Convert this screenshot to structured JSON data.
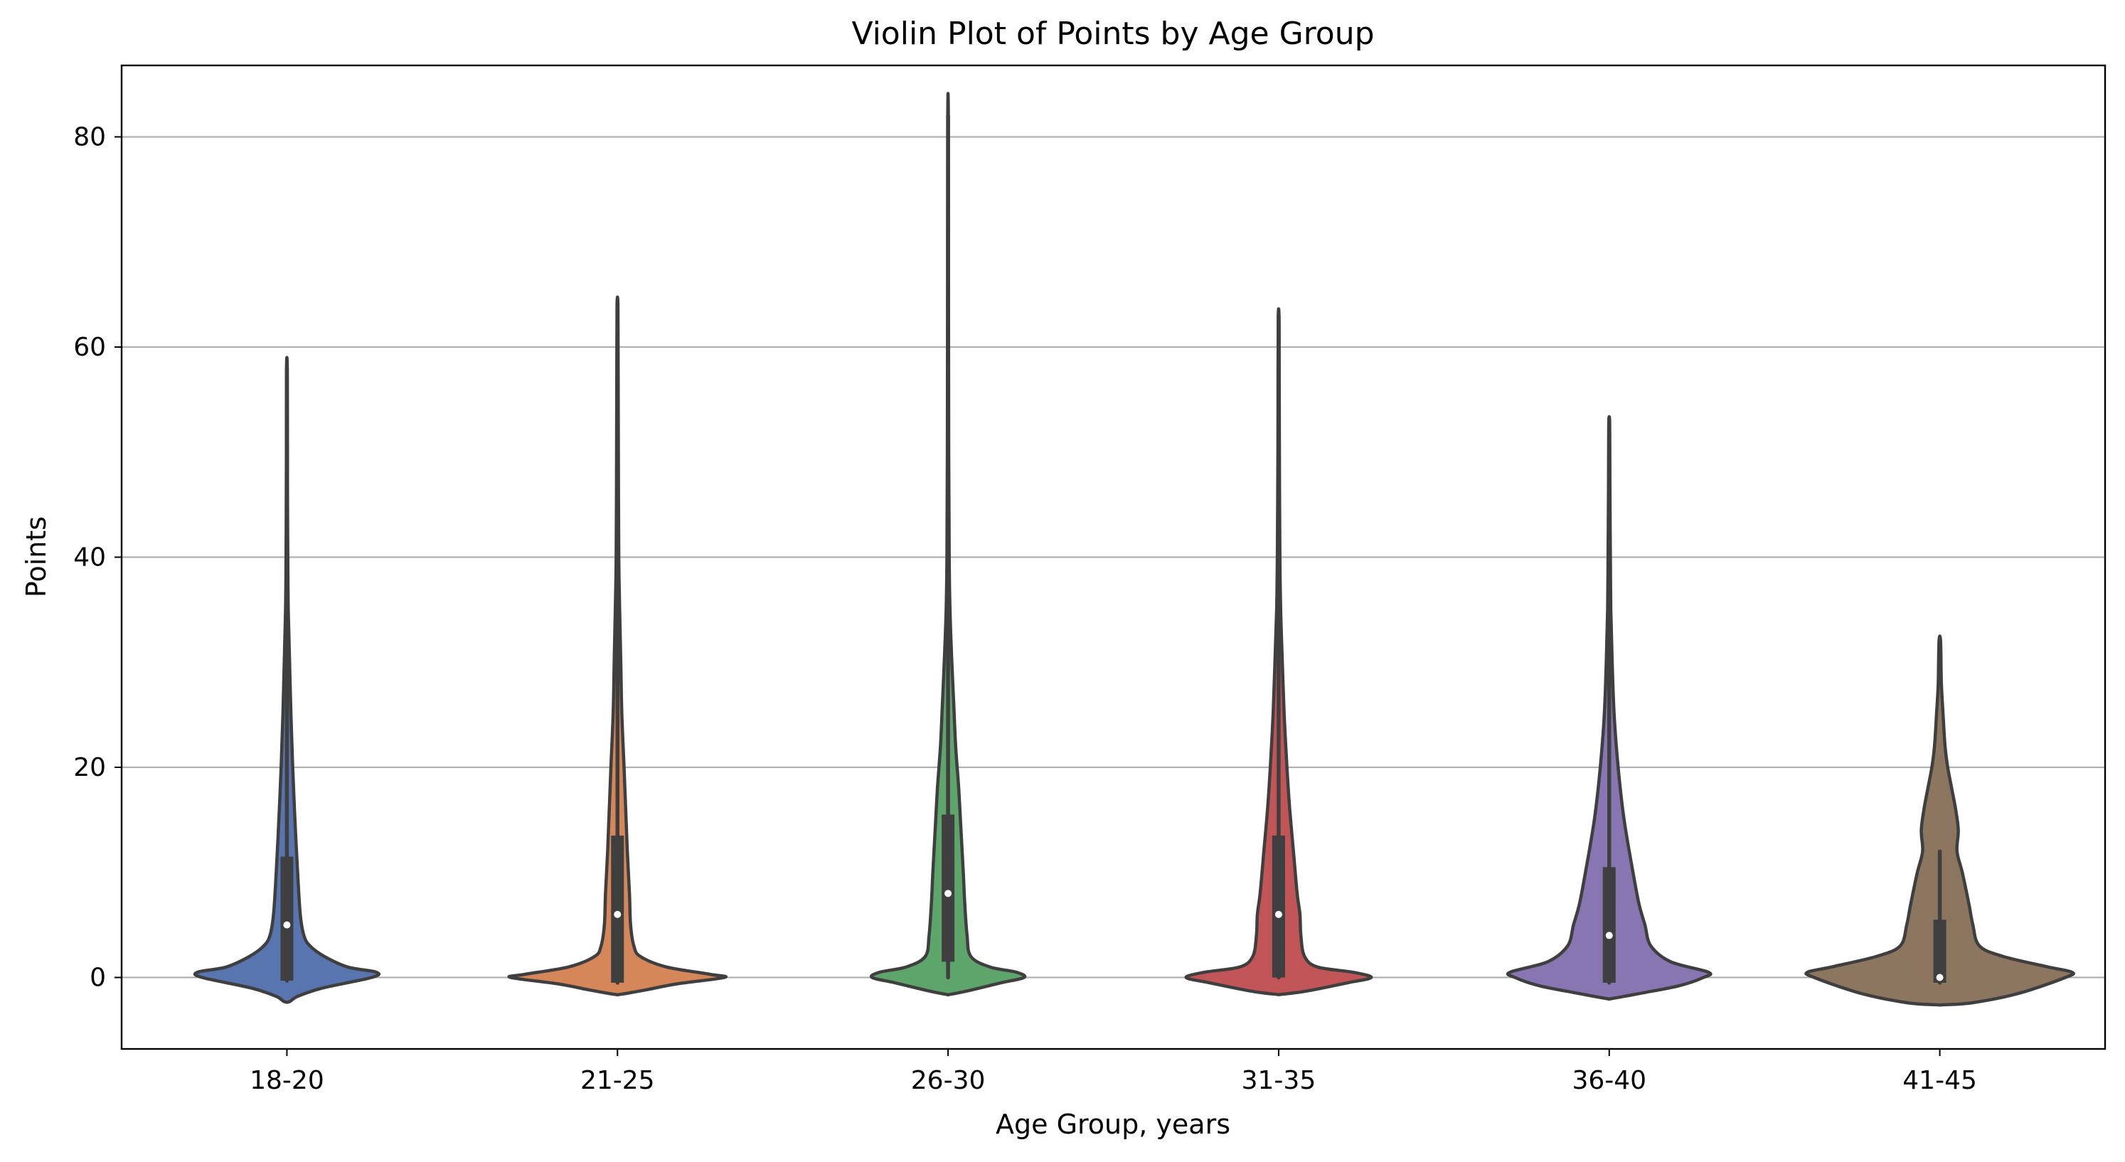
{
  "chart_data": {
    "type": "violin",
    "title": "Violin Plot of Points by Age Group",
    "xlabel": "Age Group, years",
    "ylabel": "Points",
    "ylim": [
      -6.8,
      86.8
    ],
    "yticks": [
      0,
      20,
      40,
      60,
      80
    ],
    "grid": "y",
    "outline_color": "#3f3f3f",
    "box_color": "#3f3f3f",
    "median_color": "#ffffff",
    "grid_color": "#b0b0b0",
    "categories": [
      "18-20",
      "21-25",
      "26-30",
      "31-35",
      "36-40",
      "41-45"
    ],
    "colors": [
      "#5875b0",
      "#d68759",
      "#5ea56c",
      "#c25557",
      "#8876b3",
      "#8d7660"
    ],
    "max_half_width": [
      0.27,
      0.33,
      0.23,
      0.28,
      0.3,
      0.4
    ],
    "violins": [
      {
        "category": "18-20",
        "profile": [
          [
            -2.3,
            0.03
          ],
          [
            -1.8,
            0.12
          ],
          [
            -1,
            0.4
          ],
          [
            0,
            0.95
          ],
          [
            0.5,
            1
          ],
          [
            1,
            0.68
          ],
          [
            2,
            0.42
          ],
          [
            3,
            0.26
          ],
          [
            4,
            0.19
          ],
          [
            6,
            0.15
          ],
          [
            10,
            0.12
          ],
          [
            15,
            0.09
          ],
          [
            20,
            0.065
          ],
          [
            25,
            0.045
          ],
          [
            30,
            0.03
          ],
          [
            35,
            0.015
          ],
          [
            40,
            0.01
          ],
          [
            45,
            0.007
          ],
          [
            50,
            0.006
          ],
          [
            58,
            0.004
          ]
        ],
        "q1": -0.3,
        "q3": 11.5,
        "median": 5,
        "whisker_low": -0.3,
        "whisker_high": 58
      },
      {
        "category": "21-25",
        "profile": [
          [
            -1.6,
            0.03
          ],
          [
            -1.2,
            0.25
          ],
          [
            -0.6,
            0.55
          ],
          [
            0,
            0.98
          ],
          [
            0.3,
            0.85
          ],
          [
            1,
            0.45
          ],
          [
            2,
            0.21
          ],
          [
            3,
            0.15
          ],
          [
            5,
            0.12
          ],
          [
            8,
            0.11
          ],
          [
            12,
            0.09
          ],
          [
            16,
            0.075
          ],
          [
            20,
            0.06
          ],
          [
            25,
            0.04
          ],
          [
            30,
            0.03
          ],
          [
            35,
            0.02
          ],
          [
            40,
            0.012
          ],
          [
            50,
            0.008
          ],
          [
            58,
            0.006
          ],
          [
            64,
            0.004
          ]
        ],
        "q1": -0.5,
        "q3": 13.5,
        "median": 6,
        "whisker_low": -0.5,
        "whisker_high": 64
      },
      {
        "category": "26-30",
        "profile": [
          [
            -1.6,
            0.03
          ],
          [
            -1.2,
            0.3
          ],
          [
            -0.5,
            0.7
          ],
          [
            0,
            1
          ],
          [
            0.5,
            0.9
          ],
          [
            1,
            0.55
          ],
          [
            2,
            0.3
          ],
          [
            4,
            0.25
          ],
          [
            7,
            0.22
          ],
          [
            10,
            0.2
          ],
          [
            14,
            0.17
          ],
          [
            18,
            0.14
          ],
          [
            22,
            0.1
          ],
          [
            26,
            0.075
          ],
          [
            30,
            0.05
          ],
          [
            35,
            0.025
          ],
          [
            40,
            0.015
          ],
          [
            50,
            0.009
          ],
          [
            65,
            0.006
          ],
          [
            82,
            0.004
          ]
        ],
        "q1": 1.5,
        "q3": 15.5,
        "median": 8,
        "whisker_low": 0,
        "whisker_high": 82
      },
      {
        "category": "31-35",
        "profile": [
          [
            -1.6,
            0.03
          ],
          [
            -1.3,
            0.3
          ],
          [
            -0.5,
            0.75
          ],
          [
            0,
            1
          ],
          [
            0.5,
            0.8
          ],
          [
            1,
            0.42
          ],
          [
            2,
            0.28
          ],
          [
            4,
            0.24
          ],
          [
            6,
            0.23
          ],
          [
            8,
            0.2
          ],
          [
            12,
            0.16
          ],
          [
            16,
            0.12
          ],
          [
            20,
            0.09
          ],
          [
            25,
            0.06
          ],
          [
            30,
            0.04
          ],
          [
            35,
            0.022
          ],
          [
            40,
            0.014
          ],
          [
            50,
            0.008
          ],
          [
            58,
            0.006
          ],
          [
            63,
            0.004
          ]
        ],
        "q1": 0,
        "q3": 13.5,
        "median": 6,
        "whisker_low": 0,
        "whisker_high": 63
      },
      {
        "category": "36-40",
        "profile": [
          [
            -2,
            0.03
          ],
          [
            -1.5,
            0.32
          ],
          [
            -0.8,
            0.7
          ],
          [
            0,
            0.95
          ],
          [
            0.5,
            1
          ],
          [
            1.5,
            0.62
          ],
          [
            3,
            0.42
          ],
          [
            5,
            0.36
          ],
          [
            7,
            0.3
          ],
          [
            10,
            0.24
          ],
          [
            15,
            0.15
          ],
          [
            20,
            0.09
          ],
          [
            25,
            0.05
          ],
          [
            30,
            0.03
          ],
          [
            35,
            0.016
          ],
          [
            40,
            0.012
          ],
          [
            45,
            0.008
          ],
          [
            50,
            0.006
          ],
          [
            53,
            0.004
          ]
        ],
        "q1": -0.5,
        "q3": 10.5,
        "median": 4,
        "whisker_low": -0.5,
        "whisker_high": 53
      },
      {
        "category": "41-45",
        "profile": [
          [
            -2.6,
            0.03
          ],
          [
            -2.4,
            0.25
          ],
          [
            -1.5,
            0.6
          ],
          [
            0,
            0.95
          ],
          [
            0.5,
            1
          ],
          [
            1,
            0.82
          ],
          [
            2,
            0.48
          ],
          [
            3,
            0.3
          ],
          [
            5,
            0.25
          ],
          [
            7,
            0.22
          ],
          [
            10,
            0.17
          ],
          [
            12,
            0.13
          ],
          [
            14,
            0.14
          ],
          [
            16,
            0.12
          ],
          [
            18,
            0.09
          ],
          [
            20,
            0.06
          ],
          [
            22,
            0.04
          ],
          [
            25,
            0.025
          ],
          [
            28,
            0.012
          ],
          [
            32,
            0.006
          ]
        ],
        "q1": -0.5,
        "q3": 5.5,
        "median": 0,
        "whisker_low": -0.5,
        "whisker_high": 12
      }
    ]
  }
}
